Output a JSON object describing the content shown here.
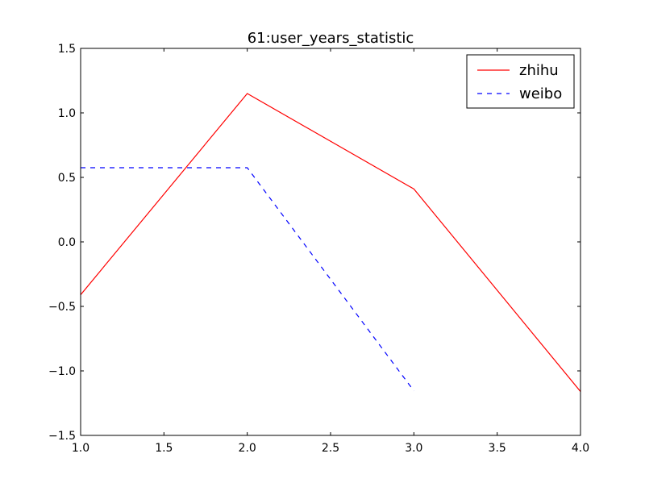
{
  "chart_data": {
    "type": "line",
    "title": "61:user_years_statistic",
    "xlabel": "",
    "ylabel": "",
    "xlim": [
      1.0,
      4.0
    ],
    "ylim": [
      -1.5,
      1.5
    ],
    "xticks": [
      1.0,
      1.5,
      2.0,
      2.5,
      3.0,
      3.5,
      4.0
    ],
    "xtick_labels": [
      "1.0",
      "1.5",
      "2.0",
      "2.5",
      "3.0",
      "3.5",
      "4.0"
    ],
    "yticks": [
      -1.5,
      -1.0,
      -0.5,
      0.0,
      0.5,
      1.0,
      1.5
    ],
    "ytick_labels": [
      "−1.5",
      "−1.0",
      "−0.5",
      "0.0",
      "0.5",
      "1.0",
      "1.5"
    ],
    "grid": false,
    "legend_position": "top-right",
    "series": [
      {
        "name": "zhihu",
        "x": [
          1,
          2,
          3,
          4
        ],
        "values": [
          -0.41,
          1.15,
          0.41,
          -1.16
        ],
        "color": "#ff0000",
        "line_style": "solid"
      },
      {
        "name": "weibo",
        "x": [
          1,
          2,
          3
        ],
        "values": [
          0.575,
          0.575,
          -1.155
        ],
        "color": "#0000ff",
        "line_style": "dashed"
      }
    ]
  }
}
